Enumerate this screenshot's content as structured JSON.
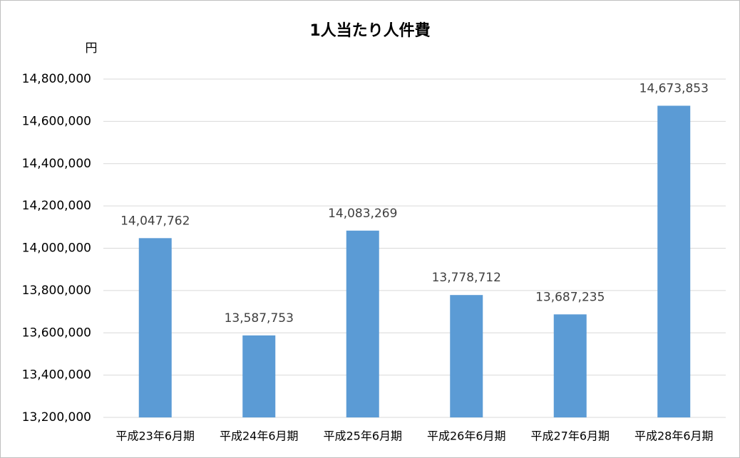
{
  "chart_data": {
    "type": "bar",
    "title": "1人当たり人件費",
    "ylabel": "円",
    "categories": [
      "平成23年6月期",
      "平成24年6月期",
      "平成25年6月期",
      "平成26年6月期",
      "平成27年6月期",
      "平成28年6月期"
    ],
    "values": [
      14047762,
      13587753,
      14083269,
      13778712,
      13687235,
      14673853
    ],
    "value_labels": [
      "14,047,762",
      "13,587,753",
      "14,083,269",
      "13,778,712",
      "13,687,235",
      "14,673,853"
    ],
    "color": "#5b9bd5",
    "ylim": [
      13200000,
      14800000
    ],
    "yticks": [
      {
        "value": 13200000,
        "label": "13,200,000"
      },
      {
        "value": 13400000,
        "label": "13,400,000"
      },
      {
        "value": 13600000,
        "label": "13,600,000"
      },
      {
        "value": 13800000,
        "label": "13,800,000"
      },
      {
        "value": 14000000,
        "label": "14,000,000"
      },
      {
        "value": 14200000,
        "label": "14,200,000"
      },
      {
        "value": 14400000,
        "label": "14,400,000"
      },
      {
        "value": 14600000,
        "label": "14,600,000"
      },
      {
        "value": 14800000,
        "label": "14,800,000"
      }
    ],
    "grid": true
  }
}
